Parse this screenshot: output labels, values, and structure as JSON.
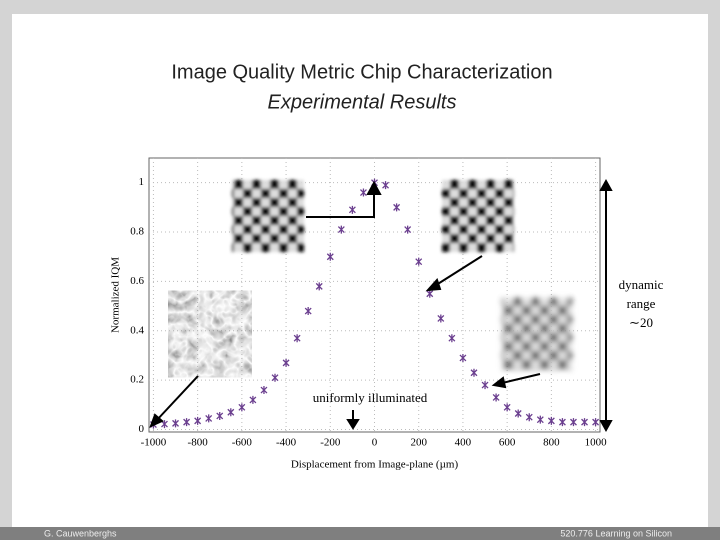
{
  "header": {
    "title": "Image Quality Metric Chip Characterization",
    "subtitle": "Experimental Results"
  },
  "chart_data": {
    "type": "scatter",
    "x": [
      -1000,
      -950,
      -900,
      -850,
      -800,
      -750,
      -700,
      -650,
      -600,
      -550,
      -500,
      -450,
      -400,
      -350,
      -300,
      -250,
      -200,
      -150,
      -100,
      -50,
      0,
      50,
      100,
      150,
      200,
      250,
      300,
      350,
      400,
      450,
      500,
      550,
      600,
      650,
      700,
      750,
      800,
      850,
      900,
      950,
      1000
    ],
    "values": [
      0.02,
      0.022,
      0.025,
      0.03,
      0.035,
      0.045,
      0.055,
      0.07,
      0.09,
      0.12,
      0.16,
      0.21,
      0.27,
      0.37,
      0.48,
      0.58,
      0.7,
      0.81,
      0.89,
      0.96,
      1.0,
      0.99,
      0.9,
      0.81,
      0.68,
      0.55,
      0.45,
      0.37,
      0.29,
      0.23,
      0.18,
      0.13,
      0.09,
      0.065,
      0.05,
      0.04,
      0.035,
      0.03,
      0.03,
      0.03,
      0.03
    ],
    "color": "#6b3f8f",
    "xlabel": "Displacement from Image-plane (µm)",
    "ylabel": "Normalized IQM",
    "xlim": [
      -1020,
      1020
    ],
    "ylim": [
      -0.01,
      1.1
    ],
    "xticks": [
      -1000,
      -800,
      -600,
      -400,
      -200,
      0,
      200,
      400,
      600,
      800,
      1000
    ],
    "yticks": [
      0,
      0.2,
      0.4,
      0.6,
      0.8,
      1
    ],
    "grid": true,
    "annotations": [
      "dynamic",
      "range",
      "∼20",
      "uniformly illuminated"
    ]
  },
  "footer": {
    "left": "G. Cauwenberghs",
    "right": "520.776 Learning on Silicon"
  }
}
